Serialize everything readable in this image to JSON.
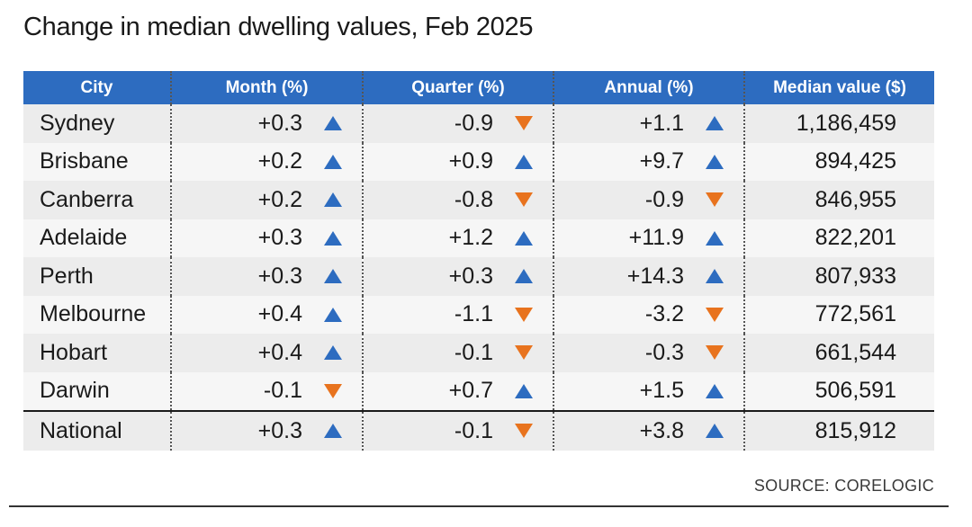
{
  "title": "Change in median dwelling values, Feb 2025",
  "source": "SOURCE: CORELOGIC",
  "colors": {
    "header": "#2d6cc0",
    "up": "#2d6cc0",
    "down": "#e8731e"
  },
  "chart_data": {
    "type": "table",
    "columns": [
      "City",
      "Month (%)",
      "Quarter (%)",
      "Annual (%)",
      "Median value ($)"
    ],
    "rows": [
      {
        "city": "Sydney",
        "month": "+0.3",
        "quarter": "-0.9",
        "annual": "+1.1",
        "median": "1,186,459",
        "month_dir": "up",
        "quarter_dir": "down",
        "annual_dir": "up"
      },
      {
        "city": "Brisbane",
        "month": "+0.2",
        "quarter": "+0.9",
        "annual": "+9.7",
        "median": "894,425",
        "month_dir": "up",
        "quarter_dir": "up",
        "annual_dir": "up"
      },
      {
        "city": "Canberra",
        "month": "+0.2",
        "quarter": "-0.8",
        "annual": "-0.9",
        "median": "846,955",
        "month_dir": "up",
        "quarter_dir": "down",
        "annual_dir": "down"
      },
      {
        "city": "Adelaide",
        "month": "+0.3",
        "quarter": "+1.2",
        "annual": "+11.9",
        "median": "822,201",
        "month_dir": "up",
        "quarter_dir": "up",
        "annual_dir": "up"
      },
      {
        "city": "Perth",
        "month": "+0.3",
        "quarter": "+0.3",
        "annual": "+14.3",
        "median": "807,933",
        "month_dir": "up",
        "quarter_dir": "up",
        "annual_dir": "up"
      },
      {
        "city": "Melbourne",
        "month": "+0.4",
        "quarter": "-1.1",
        "annual": "-3.2",
        "median": "772,561",
        "month_dir": "up",
        "quarter_dir": "down",
        "annual_dir": "down"
      },
      {
        "city": "Hobart",
        "month": "+0.4",
        "quarter": "-0.1",
        "annual": "-0.3",
        "median": "661,544",
        "month_dir": "up",
        "quarter_dir": "down",
        "annual_dir": "down"
      },
      {
        "city": "Darwin",
        "month": "-0.1",
        "quarter": "+0.7",
        "annual": "+1.5",
        "median": "506,591",
        "month_dir": "down",
        "quarter_dir": "up",
        "annual_dir": "up"
      },
      {
        "city": "National",
        "month": "+0.3",
        "quarter": "-0.1",
        "annual": "+3.8",
        "median": "815,912",
        "month_dir": "up",
        "quarter_dir": "down",
        "annual_dir": "up"
      }
    ]
  }
}
